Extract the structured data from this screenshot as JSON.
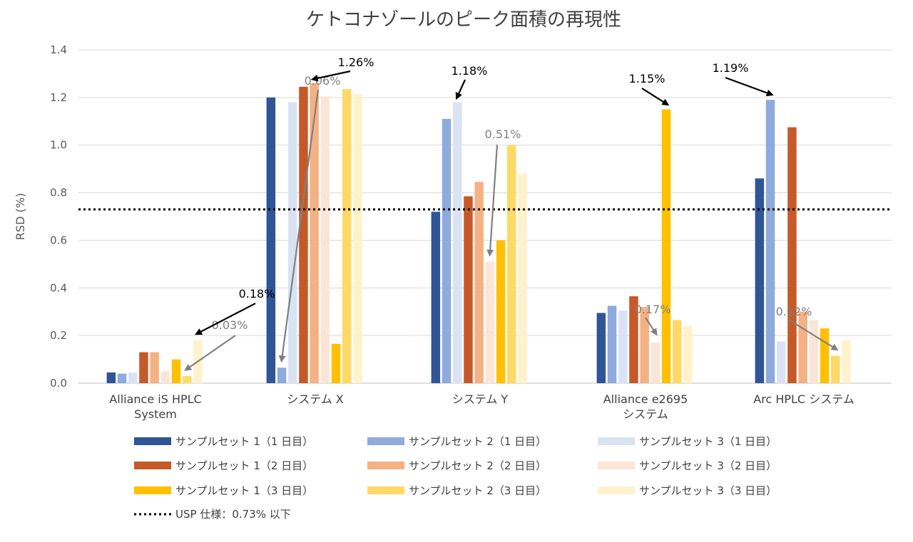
{
  "chart_data": {
    "type": "bar",
    "title": "ケトコナゾールのピーク面積の再現性",
    "xlabel": "",
    "ylabel": "RSD (%)",
    "ylim": [
      0,
      1.4
    ],
    "yticks": [
      "0.0",
      "0.2",
      "0.4",
      "0.6",
      "0.8",
      "1.0",
      "1.2",
      "1.4"
    ],
    "grid": true,
    "categories": [
      [
        "Alliance iS HPLC",
        "System"
      ],
      [
        "システム X"
      ],
      [
        "システム Y"
      ],
      [
        "Alliance e2695",
        "システム"
      ],
      [
        "Arc HPLC システム"
      ]
    ],
    "series": [
      {
        "name": "サンプルセット 1（1 日目）",
        "color": "#2f5597",
        "values": [
          0.045,
          1.2,
          0.72,
          0.295,
          0.86
        ]
      },
      {
        "name": "サンプルセット 2（1 日目）",
        "color": "#8faadc",
        "values": [
          0.04,
          0.065,
          1.11,
          0.325,
          1.19
        ]
      },
      {
        "name": "サンプルセット 3（1 日目）",
        "color": "#dae3f3",
        "values": [
          0.045,
          1.18,
          1.18,
          0.305,
          0.175
        ]
      },
      {
        "name": "サンプルセット 1（2 日目）",
        "color": "#c55a28",
        "values": [
          0.13,
          1.245,
          0.785,
          0.365,
          1.075
        ]
      },
      {
        "name": "サンプルセット 2（2 日目）",
        "color": "#f4b183",
        "values": [
          0.13,
          1.26,
          0.845,
          0.32,
          0.3
        ]
      },
      {
        "name": "サンプルセット 3（2 日目）",
        "color": "#fbe5d6",
        "values": [
          0.05,
          1.205,
          0.51,
          0.17,
          0.265
        ]
      },
      {
        "name": "サンプルセット 1（3 日目）",
        "color": "#ffc000",
        "values": [
          0.1,
          0.165,
          0.6,
          1.15,
          0.23
        ]
      },
      {
        "name": "サンプルセット 2（3 日目）",
        "color": "#ffd966",
        "values": [
          0.03,
          1.235,
          1.0,
          0.265,
          0.115
        ]
      },
      {
        "name": "サンプルセット 3（3 日目）",
        "color": "#fff2cc",
        "values": [
          0.18,
          1.215,
          0.88,
          0.24,
          0.18
        ]
      }
    ],
    "reference_line": {
      "label": "USP 仕様：0.73% 以下",
      "value": 0.73,
      "style": "dotted",
      "color": "#000000"
    },
    "annotations": [
      {
        "text": "0.03%",
        "category": 0,
        "series": 7,
        "color": "gray"
      },
      {
        "text": "0.18%",
        "category": 0,
        "series": 8,
        "color": "black"
      },
      {
        "text": "0.06%",
        "category": 1,
        "series": 1,
        "color": "gray"
      },
      {
        "text": "1.26%",
        "category": 1,
        "series": 4,
        "color": "black"
      },
      {
        "text": "1.18%",
        "category": 2,
        "series": 2,
        "color": "black"
      },
      {
        "text": "0.51%",
        "category": 2,
        "series": 5,
        "color": "gray"
      },
      {
        "text": "1.15%",
        "category": 3,
        "series": 6,
        "color": "black"
      },
      {
        "text": "0.17%",
        "category": 3,
        "series": 5,
        "color": "gray"
      },
      {
        "text": "1.19%",
        "category": 4,
        "series": 1,
        "color": "black"
      },
      {
        "text": "0.12%",
        "category": 4,
        "series": 7,
        "color": "gray"
      }
    ],
    "legend_position": "bottom"
  }
}
